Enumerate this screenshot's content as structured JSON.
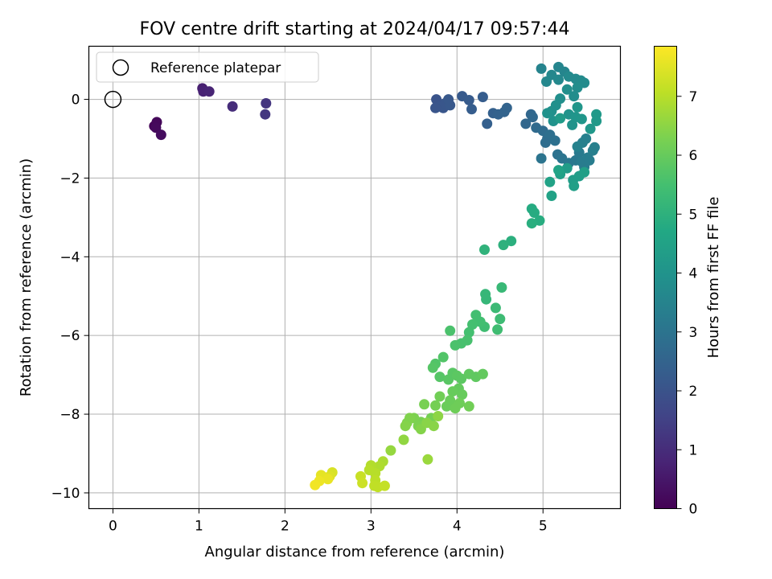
{
  "chart_data": {
    "type": "scatter",
    "title": "FOV centre drift starting at 2024/04/17 09:57:44",
    "xlabel": "Angular distance from reference (arcmin)",
    "ylabel": "Rotation from reference (arcmin)",
    "xlim": [
      -0.28,
      5.9
    ],
    "ylim": [
      -10.4,
      1.35
    ],
    "xticks": [
      0,
      1,
      2,
      3,
      4,
      5
    ],
    "yticks": [
      -10,
      -8,
      -6,
      -4,
      -2,
      0
    ],
    "xtick_labels": [
      "0",
      "1",
      "2",
      "3",
      "4",
      "5"
    ],
    "ytick_labels": [
      "−10",
      "−8",
      "−6",
      "−4",
      "−2",
      "0"
    ],
    "grid": true,
    "legend": {
      "position": "top-left",
      "entries": [
        {
          "label": "Reference platepar",
          "marker": "open-circle",
          "x": 0,
          "y": 0
        }
      ]
    },
    "colorbar": {
      "label": "Hours from first FF file",
      "colormap": "viridis",
      "range": [
        0,
        7.85
      ],
      "ticks": [
        0,
        1,
        2,
        3,
        4,
        5,
        6,
        7
      ],
      "tick_labels": [
        "0",
        "1",
        "2",
        "3",
        "4",
        "5",
        "6",
        "7"
      ]
    },
    "points": [
      [
        0.48,
        -0.68,
        0.1
      ],
      [
        0.51,
        -0.58,
        0.15
      ],
      [
        0.5,
        -0.72,
        0.2
      ],
      [
        0.56,
        -0.9,
        0.25
      ],
      [
        1.04,
        0.28,
        0.7
      ],
      [
        1.05,
        0.2,
        0.75
      ],
      [
        1.12,
        0.2,
        0.8
      ],
      [
        1.39,
        -0.18,
        1.0
      ],
      [
        1.78,
        -0.1,
        1.2
      ],
      [
        1.77,
        -0.38,
        1.25
      ],
      [
        3.76,
        0.0,
        2.0
      ],
      [
        3.8,
        -0.18,
        2.05
      ],
      [
        3.84,
        -0.22,
        2.1
      ],
      [
        3.86,
        -0.1,
        2.1
      ],
      [
        3.9,
        0.0,
        2.15
      ],
      [
        3.92,
        -0.15,
        2.15
      ],
      [
        3.75,
        -0.22,
        2.05
      ],
      [
        4.06,
        0.08,
        2.2
      ],
      [
        4.14,
        -0.02,
        2.25
      ],
      [
        4.17,
        -0.25,
        2.3
      ],
      [
        4.3,
        0.06,
        2.3
      ],
      [
        4.35,
        -0.62,
        2.4
      ],
      [
        4.42,
        -0.35,
        2.4
      ],
      [
        4.48,
        -0.38,
        2.45
      ],
      [
        4.55,
        -0.32,
        2.5
      ],
      [
        4.58,
        -0.22,
        2.5
      ],
      [
        4.8,
        -0.62,
        2.6
      ],
      [
        4.86,
        -0.38,
        2.6
      ],
      [
        4.88,
        -0.45,
        2.65
      ],
      [
        4.92,
        -0.72,
        2.7
      ],
      [
        5.0,
        -0.8,
        2.75
      ],
      [
        5.05,
        -1.0,
        2.8
      ],
      [
        5.08,
        -0.9,
        2.85
      ],
      [
        5.03,
        -1.1,
        2.8
      ],
      [
        5.14,
        -1.05,
        2.9
      ],
      [
        5.17,
        -1.4,
        2.95
      ],
      [
        5.22,
        -1.5,
        3.0
      ],
      [
        4.98,
        -1.5,
        3.0
      ],
      [
        5.3,
        -1.62,
        3.1
      ],
      [
        5.38,
        -1.55,
        3.15
      ],
      [
        5.42,
        -1.35,
        3.2
      ],
      [
        5.45,
        -1.58,
        3.25
      ],
      [
        5.48,
        -1.72,
        3.25
      ],
      [
        5.52,
        -1.48,
        3.3
      ],
      [
        5.54,
        -1.55,
        3.3
      ],
      [
        5.58,
        -1.3,
        3.35
      ],
      [
        5.6,
        -1.22,
        3.4
      ],
      [
        5.46,
        -1.1,
        3.4
      ],
      [
        5.5,
        -1.0,
        3.4
      ],
      [
        5.4,
        -1.2,
        3.45
      ],
      [
        4.98,
        0.78,
        3.5
      ],
      [
        5.18,
        0.82,
        3.55
      ],
      [
        5.25,
        0.7,
        3.55
      ],
      [
        5.1,
        0.62,
        3.6
      ],
      [
        5.04,
        0.45,
        3.6
      ],
      [
        5.18,
        0.5,
        3.65
      ],
      [
        5.3,
        0.58,
        3.7
      ],
      [
        5.38,
        0.52,
        3.7
      ],
      [
        5.44,
        0.48,
        3.75
      ],
      [
        5.48,
        0.42,
        3.75
      ],
      [
        5.4,
        0.3,
        3.8
      ],
      [
        5.36,
        0.08,
        3.8
      ],
      [
        5.28,
        0.25,
        3.85
      ],
      [
        5.2,
        0.02,
        3.85
      ],
      [
        5.15,
        -0.15,
        3.9
      ],
      [
        5.1,
        -0.3,
        3.9
      ],
      [
        5.12,
        -0.55,
        3.95
      ],
      [
        5.05,
        -0.35,
        3.95
      ],
      [
        5.3,
        -0.38,
        4.0
      ],
      [
        5.34,
        -0.65,
        4.0
      ],
      [
        5.38,
        -0.45,
        4.05
      ],
      [
        5.45,
        -0.5,
        4.1
      ],
      [
        5.4,
        -0.2,
        4.1
      ],
      [
        5.55,
        -0.75,
        4.15
      ],
      [
        5.62,
        -0.38,
        4.2
      ],
      [
        5.62,
        -0.55,
        4.2
      ],
      [
        5.2,
        -0.48,
        4.25
      ],
      [
        5.28,
        -1.75,
        4.3
      ],
      [
        5.35,
        -2.05,
        4.35
      ],
      [
        5.42,
        -1.95,
        4.35
      ],
      [
        5.48,
        -1.85,
        4.4
      ],
      [
        5.36,
        -2.2,
        4.4
      ],
      [
        5.2,
        -1.9,
        4.45
      ],
      [
        5.1,
        -2.45,
        4.5
      ],
      [
        5.08,
        -2.1,
        4.5
      ],
      [
        5.18,
        -1.8,
        4.55
      ],
      [
        4.87,
        -2.78,
        4.8
      ],
      [
        4.9,
        -2.88,
        4.82
      ],
      [
        4.96,
        -3.08,
        4.85
      ],
      [
        4.87,
        -3.15,
        4.9
      ],
      [
        4.63,
        -3.6,
        4.95
      ],
      [
        4.54,
        -3.7,
        5.0
      ],
      [
        4.32,
        -3.82,
        5.05
      ],
      [
        4.33,
        -4.95,
        5.2
      ],
      [
        4.34,
        -5.08,
        5.2
      ],
      [
        4.52,
        -4.78,
        5.25
      ],
      [
        4.45,
        -5.3,
        5.3
      ],
      [
        4.5,
        -5.58,
        5.35
      ],
      [
        4.47,
        -5.85,
        5.4
      ],
      [
        4.32,
        -5.78,
        5.4
      ],
      [
        4.22,
        -5.48,
        5.45
      ],
      [
        4.27,
        -5.65,
        5.45
      ],
      [
        4.18,
        -5.72,
        5.5
      ],
      [
        4.14,
        -5.92,
        5.5
      ],
      [
        4.12,
        -6.12,
        5.55
      ],
      [
        4.05,
        -6.2,
        5.55
      ],
      [
        3.98,
        -6.25,
        5.6
      ],
      [
        3.92,
        -5.88,
        5.6
      ],
      [
        3.84,
        -6.55,
        5.7
      ],
      [
        3.75,
        -6.72,
        5.7
      ],
      [
        3.72,
        -6.82,
        5.75
      ],
      [
        3.8,
        -7.05,
        5.75
      ],
      [
        3.9,
        -7.12,
        5.8
      ],
      [
        3.95,
        -6.95,
        5.8
      ],
      [
        4.0,
        -7.02,
        5.85
      ],
      [
        4.05,
        -7.1,
        5.85
      ],
      [
        4.14,
        -6.98,
        5.9
      ],
      [
        4.22,
        -7.05,
        5.9
      ],
      [
        4.3,
        -6.98,
        5.95
      ],
      [
        4.02,
        -7.35,
        5.95
      ],
      [
        4.06,
        -7.5,
        6.0
      ],
      [
        3.95,
        -7.42,
        6.0
      ],
      [
        3.92,
        -7.65,
        6.05
      ],
      [
        3.88,
        -7.8,
        6.05
      ],
      [
        3.98,
        -7.85,
        6.1
      ],
      [
        4.03,
        -7.72,
        6.1
      ],
      [
        4.14,
        -7.8,
        6.15
      ],
      [
        3.8,
        -7.55,
        6.15
      ],
      [
        3.75,
        -7.78,
        6.2
      ],
      [
        3.7,
        -8.1,
        6.2
      ],
      [
        3.62,
        -7.75,
        6.25
      ],
      [
        3.58,
        -8.2,
        6.25
      ],
      [
        3.55,
        -8.3,
        6.3
      ],
      [
        3.5,
        -8.1,
        6.3
      ],
      [
        3.42,
        -8.22,
        6.35
      ],
      [
        3.45,
        -8.1,
        6.35
      ],
      [
        3.4,
        -8.3,
        6.4
      ],
      [
        3.58,
        -8.38,
        6.4
      ],
      [
        3.65,
        -8.22,
        6.45
      ],
      [
        3.73,
        -8.3,
        6.45
      ],
      [
        3.78,
        -8.05,
        6.5
      ],
      [
        3.38,
        -8.65,
        6.55
      ],
      [
        3.23,
        -8.92,
        6.6
      ],
      [
        3.66,
        -9.15,
        6.65
      ],
      [
        3.14,
        -9.2,
        6.85
      ],
      [
        3.1,
        -9.32,
        6.9
      ],
      [
        3.0,
        -9.3,
        6.95
      ],
      [
        3.05,
        -9.5,
        7.0
      ],
      [
        2.98,
        -9.42,
        7.0
      ],
      [
        3.05,
        -9.68,
        7.05
      ],
      [
        3.08,
        -9.85,
        7.1
      ],
      [
        3.04,
        -9.82,
        7.1
      ],
      [
        3.16,
        -9.82,
        7.15
      ],
      [
        2.88,
        -9.58,
        7.2
      ],
      [
        2.9,
        -9.75,
        7.25
      ],
      [
        2.55,
        -9.48,
        7.4
      ],
      [
        2.52,
        -9.58,
        7.45
      ],
      [
        2.45,
        -9.6,
        7.5
      ],
      [
        2.42,
        -9.55,
        7.55
      ],
      [
        2.5,
        -9.65,
        7.6
      ],
      [
        2.4,
        -9.7,
        7.65
      ],
      [
        2.35,
        -9.8,
        7.7
      ]
    ]
  }
}
